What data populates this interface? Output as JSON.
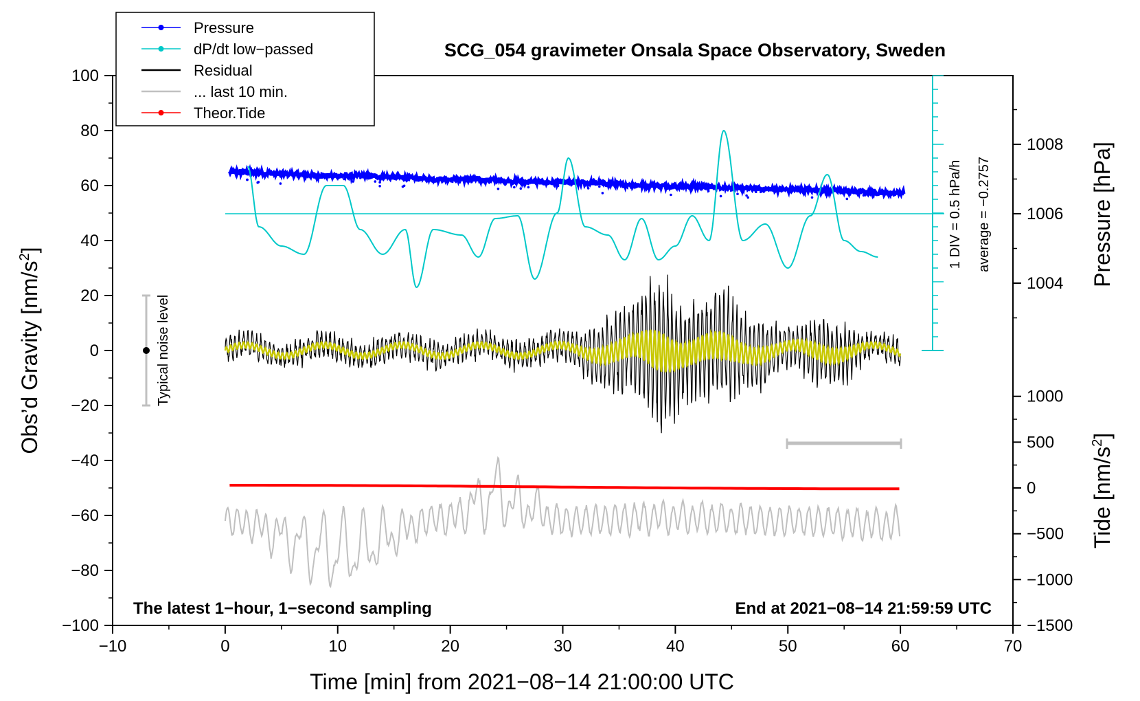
{
  "chart_data": {
    "type": "line",
    "title": "SCG_054 gravimeter Onsala Space Observatory, Sweden",
    "xlabel": "Time [min] from 2021−08−14 21:00:00 UTC",
    "ylabel_left": "Obs’d Gravity [nm/s",
    "ylabel_left_sup": "2",
    "ylabel_left_close": "]",
    "ylabel_right_pressure": "Pressure [hPa]",
    "ylabel_right_tide": "Tide [nm/s",
    "ylabel_right_tide_sup": "2",
    "ylabel_right_tide_close": "]",
    "xlim": [
      -10,
      70
    ],
    "ylim": [
      -100,
      100
    ],
    "x_ticks": [
      "−10",
      "0",
      "10",
      "20",
      "30",
      "40",
      "50",
      "60",
      "70"
    ],
    "y_ticks": [
      "100",
      "80",
      "60",
      "40",
      "20",
      "0",
      "−20",
      "−40",
      "−60",
      "−80",
      "−100"
    ],
    "pressure_ticks": [
      "1008",
      "1006",
      "1004"
    ],
    "pressure_tick_values": [
      1008,
      1006,
      1004
    ],
    "tide_ticks": [
      "1000",
      "500",
      "0",
      "−500",
      "−1000",
      "−1500"
    ],
    "tide_tick_values": [
      1000,
      500,
      0,
      -500,
      -1000,
      -1500
    ],
    "legend": [
      {
        "label": "Pressure",
        "color": "#0000ff",
        "marker": true
      },
      {
        "label": "dP/dt low−passed",
        "color": "#00c8c8",
        "marker": true
      },
      {
        "label": "Residual",
        "color": "#000000",
        "marker": false
      },
      {
        "label": "... last 10 min.",
        "color": "#c0c0c0",
        "marker": false
      },
      {
        "label": "Theor.Tide",
        "color": "#ff0000",
        "marker": true
      }
    ],
    "annotations": {
      "bottom_left": "The latest 1−hour, 1−second sampling",
      "bottom_right": "End at 2021−08−14 21:59:59 UTC",
      "noise_level": "Typical noise level",
      "dpdt_scale": "1 DIV = 0.5 hPa/h",
      "dpdt_average": "average = −0.2757"
    },
    "series": [
      {
        "name": "Pressure",
        "unit": "hPa",
        "x": [
          0,
          10,
          20,
          30,
          40,
          50,
          60
        ],
        "values": [
          1007.2,
          1007.1,
          1007.0,
          1006.9,
          1006.8,
          1006.7,
          1006.6
        ]
      },
      {
        "name": "dP/dt low−passed",
        "unit": "nm/s2 plot",
        "x": [
          2,
          3,
          5,
          7,
          9,
          10.5,
          12,
          14,
          16,
          17,
          18.5,
          21,
          22.5,
          24,
          26,
          27.5,
          29.5,
          30.5,
          32,
          34,
          35.5,
          37,
          38.5,
          40,
          41.5,
          43,
          44.3,
          46,
          48,
          50,
          52,
          53.5,
          55,
          56.5,
          58
        ],
        "values": [
          67,
          45,
          38,
          35,
          60,
          60,
          44,
          35,
          44,
          23,
          44,
          42,
          34,
          48,
          49,
          26,
          50,
          70,
          45,
          42,
          33,
          48,
          33,
          38,
          49,
          40,
          80,
          40,
          46,
          30,
          49,
          64,
          40,
          36,
          34
        ]
      },
      {
        "name": "Residual",
        "unit": "nm/s2",
        "x": [
          0,
          10,
          20,
          30,
          36,
          38.5,
          41,
          44,
          47,
          50,
          53,
          60
        ],
        "values": [
          0,
          4,
          0,
          6,
          18,
          33,
          20,
          23,
          14,
          8,
          14,
          0
        ]
      },
      {
        "name": "... last 10 min.",
        "unit": "nm/s2 plot",
        "x": [
          0,
          10,
          20,
          22.5,
          24,
          27,
          30,
          40,
          50,
          60
        ],
        "values": [
          -62,
          -79,
          -60,
          -52,
          -47,
          -55,
          -62,
          -60,
          -62,
          -64
        ]
      },
      {
        "name": "Theor.Tide",
        "unit": "nm/s2",
        "x": [
          0,
          60
        ],
        "values": [
          30,
          -10
        ]
      }
    ]
  }
}
